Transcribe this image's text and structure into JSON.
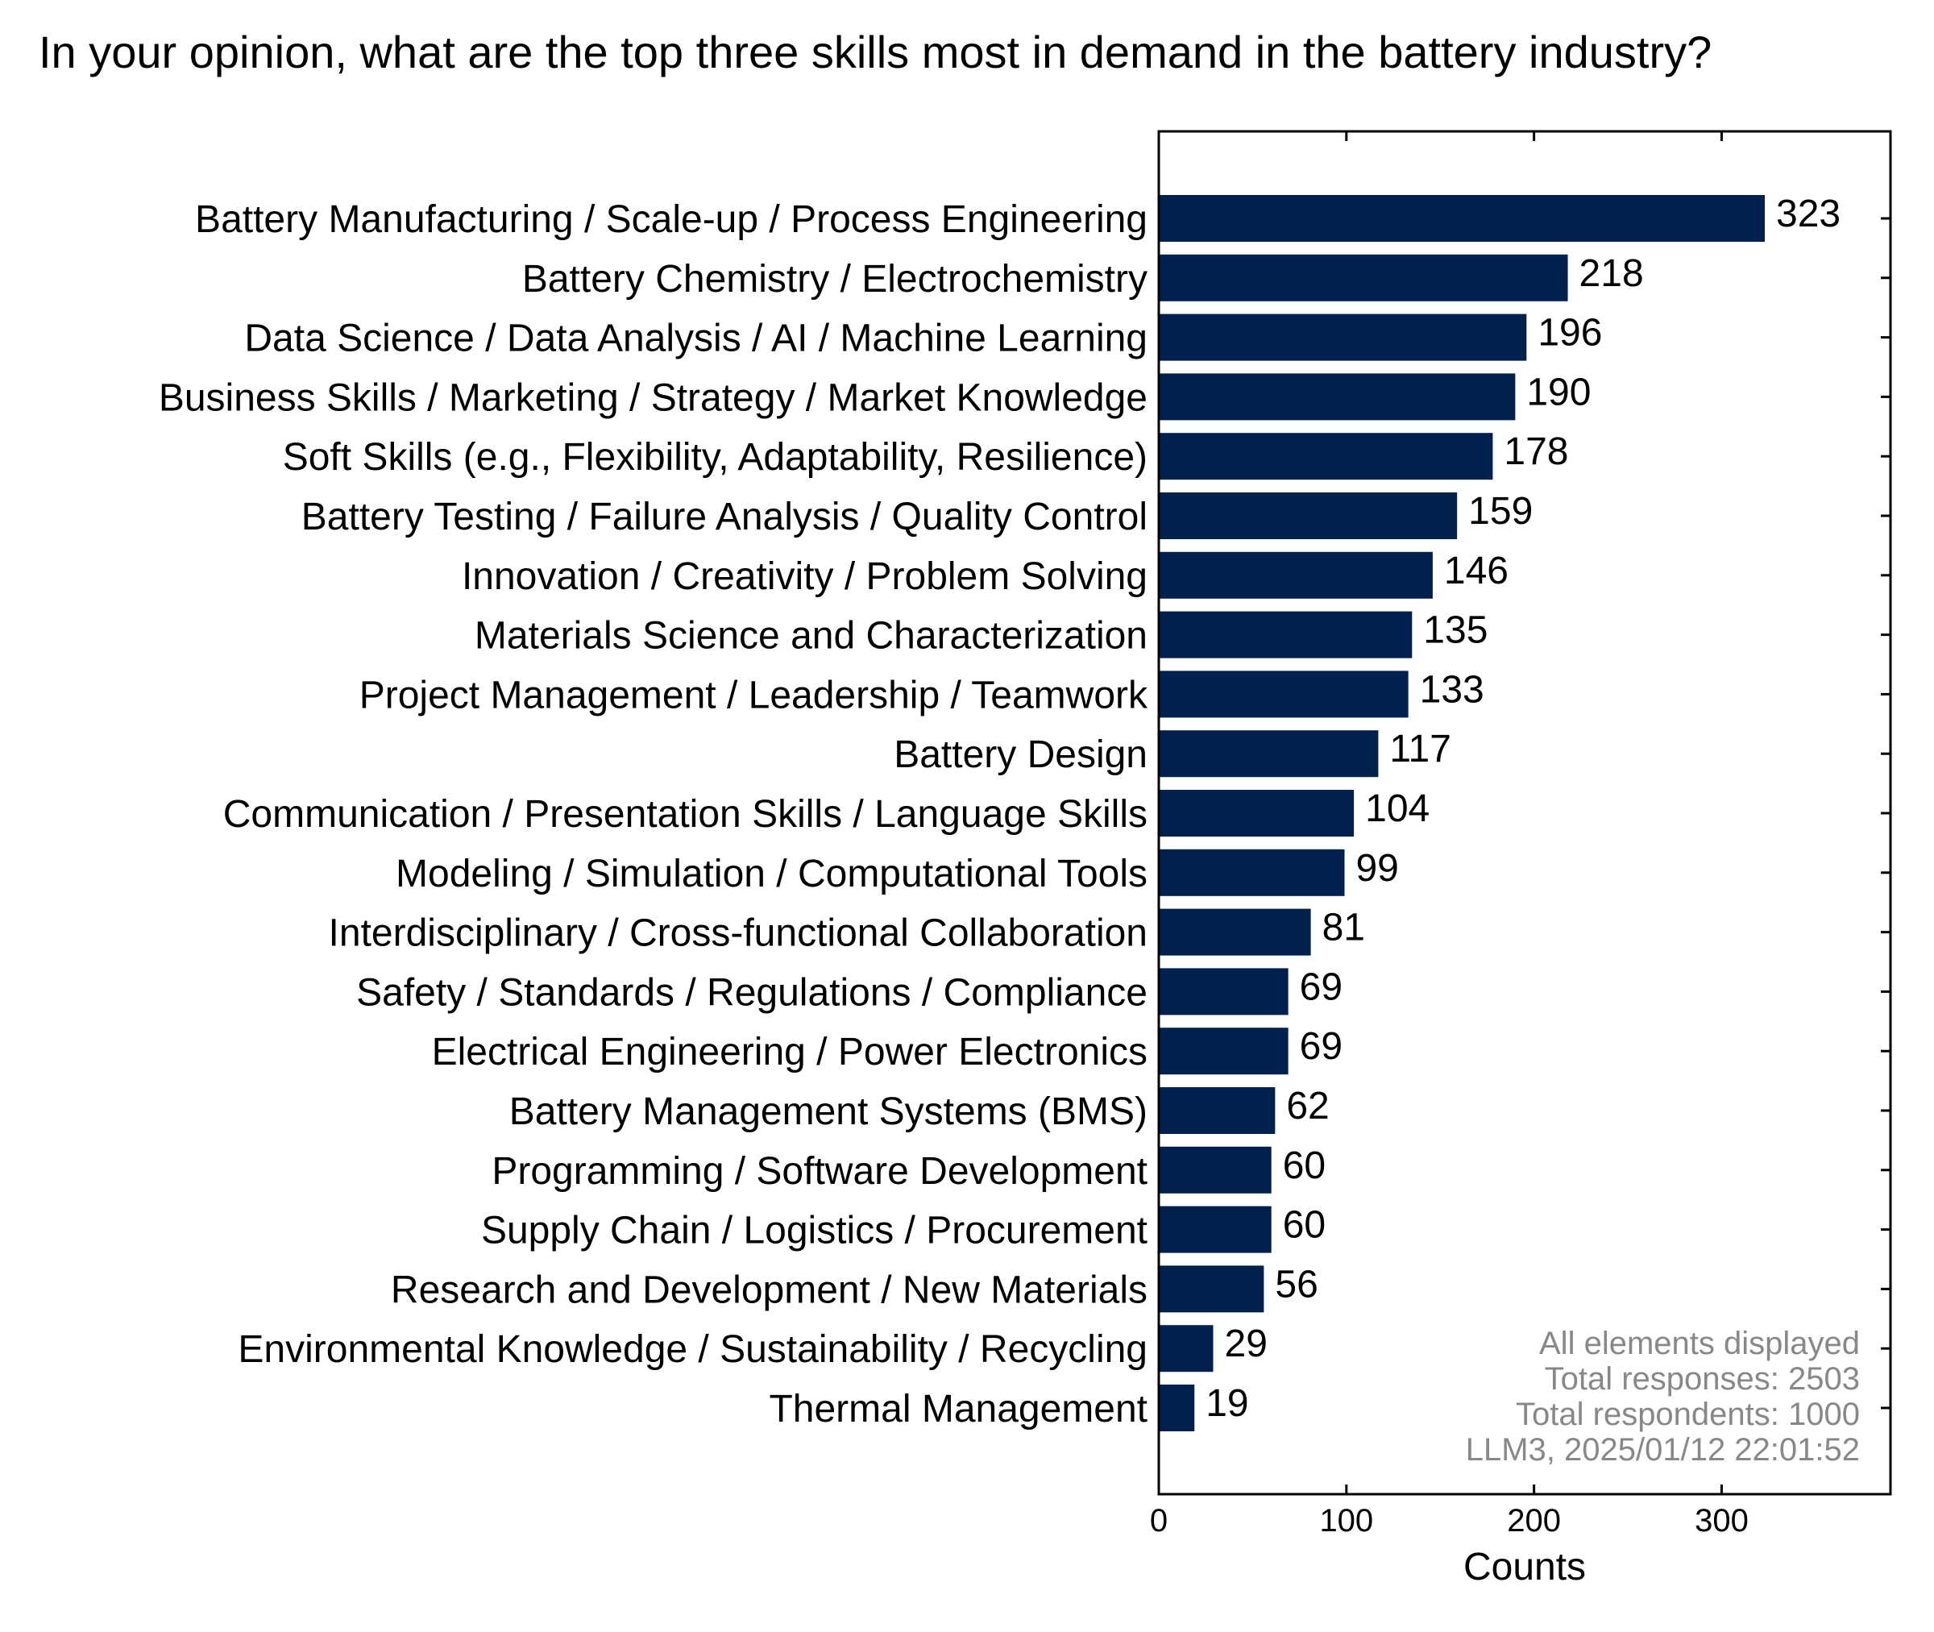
{
  "chart_data": {
    "type": "bar",
    "orientation": "horizontal",
    "title": "In your opinion, what are the top three skills most in demand in the battery industry?",
    "xlabel": "Counts",
    "ylabel": "",
    "xlim": [
      0,
      390
    ],
    "xticks": [
      0,
      100,
      200,
      300
    ],
    "grid": false,
    "bar_color": "#00204e",
    "categories": [
      "Battery Manufacturing / Scale-up / Process Engineering",
      "Battery Chemistry / Electrochemistry",
      "Data Science / Data Analysis / AI / Machine Learning",
      "Business Skills / Marketing / Strategy / Market Knowledge",
      "Soft Skills (e.g., Flexibility, Adaptability, Resilience)",
      "Battery Testing / Failure Analysis / Quality Control",
      "Innovation / Creativity / Problem Solving",
      "Materials Science and Characterization",
      "Project Management / Leadership / Teamwork",
      "Battery Design",
      "Communication / Presentation Skills / Language Skills",
      "Modeling / Simulation / Computational Tools",
      "Interdisciplinary / Cross-functional Collaboration",
      "Safety / Standards / Regulations / Compliance",
      "Electrical Engineering / Power Electronics",
      "Battery Management Systems (BMS)",
      "Programming / Software Development",
      "Supply Chain / Logistics / Procurement",
      "Research and Development / New Materials",
      "Environmental Knowledge / Sustainability / Recycling",
      "Thermal Management"
    ],
    "values": [
      323,
      218,
      196,
      190,
      178,
      159,
      146,
      135,
      133,
      117,
      104,
      99,
      81,
      69,
      69,
      62,
      60,
      60,
      56,
      29,
      19
    ],
    "annotation": [
      "All elements displayed",
      "Total responses: 2503",
      "Total respondents: 1000",
      "LLM3, 2025/01/12 22:01:52"
    ]
  }
}
